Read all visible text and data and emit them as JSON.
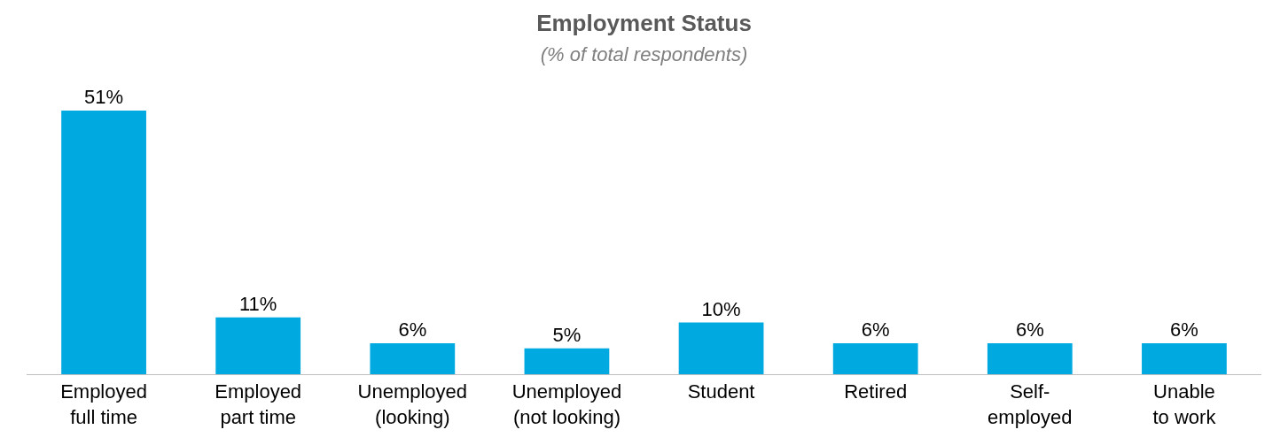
{
  "chart_data": {
    "type": "bar",
    "title": "Employment Status",
    "subtitle": "(% of total respondents)",
    "categories": [
      "Employed\nfull time",
      "Employed\npart time",
      "Unemployed\n(looking)",
      "Unemployed\n(not looking)",
      "Student",
      "Retired",
      "Self-\nemployed",
      "Unable\nto work"
    ],
    "values": [
      51,
      11,
      6,
      5,
      10,
      6,
      6,
      6
    ],
    "value_labels": [
      "51%",
      "11%",
      "6%",
      "5%",
      "10%",
      "6%",
      "6%",
      "6%"
    ],
    "color": "#00a9e0"
  }
}
